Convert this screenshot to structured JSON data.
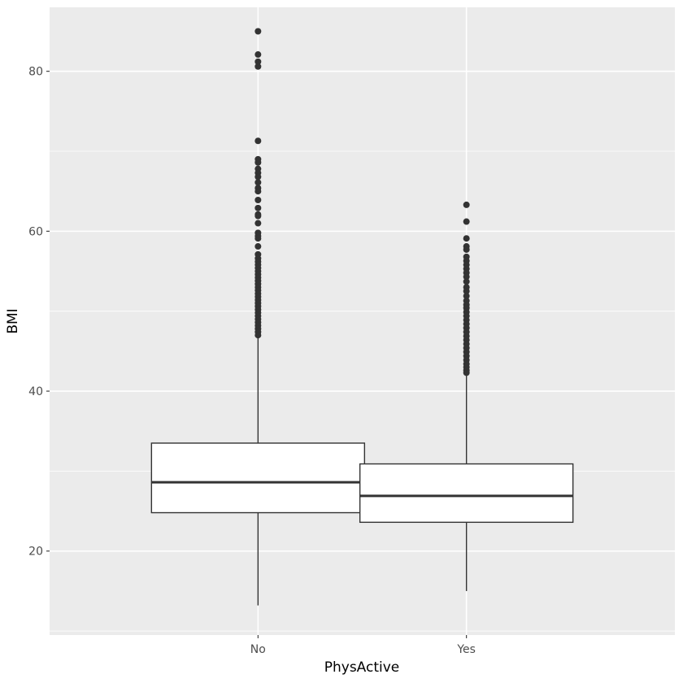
{
  "chart_data": {
    "type": "boxplot",
    "title": "",
    "xlabel": "PhysActive",
    "ylabel": "BMI",
    "ylim": [
      9.5,
      88.0
    ],
    "y_ticks": [
      20,
      40,
      60,
      80
    ],
    "categories": [
      "No",
      "Yes"
    ],
    "grid": true,
    "legend": "none",
    "colors": {
      "panel_background": "#ebebeb",
      "grid_line": "#ffffff",
      "box_fill": "#ffffff",
      "box_line": "#333333",
      "outlier": "#333333"
    },
    "boxes": [
      {
        "category": "No",
        "whisker_low": 13.2,
        "q1": 24.8,
        "median": 28.6,
        "q3": 33.5,
        "whisker_high": 46.7,
        "outliers": [
          85.0,
          82.1,
          81.2,
          80.6,
          71.3,
          69.0,
          68.6,
          67.8,
          67.3,
          66.8,
          66.1,
          65.4,
          65.0,
          63.9,
          62.9,
          62.1,
          61.9,
          61.0,
          59.8,
          59.4,
          59.1,
          58.1,
          57.1,
          56.6,
          56.2,
          55.8,
          55.4,
          55.0,
          54.6,
          54.2,
          53.8,
          53.4,
          53.0,
          52.6,
          52.2,
          51.8,
          51.4,
          51.0,
          50.6,
          50.2,
          49.8,
          49.4,
          49.0,
          48.6,
          48.2,
          47.8,
          47.4,
          47.0
        ]
      },
      {
        "category": "Yes",
        "whisker_low": 15.0,
        "q1": 23.6,
        "median": 26.9,
        "q3": 30.9,
        "whisker_high": 42.0,
        "outliers": [
          63.3,
          61.2,
          59.1,
          58.1,
          57.7,
          56.8,
          56.3,
          55.8,
          55.3,
          54.8,
          54.3,
          53.7,
          53.0,
          52.5,
          51.9,
          51.3,
          50.8,
          50.4,
          49.9,
          49.4,
          48.9,
          48.4,
          47.9,
          47.4,
          46.9,
          46.4,
          45.9,
          45.4,
          44.9,
          44.4,
          43.9,
          43.4,
          43.0,
          42.6,
          42.3
        ]
      }
    ]
  }
}
